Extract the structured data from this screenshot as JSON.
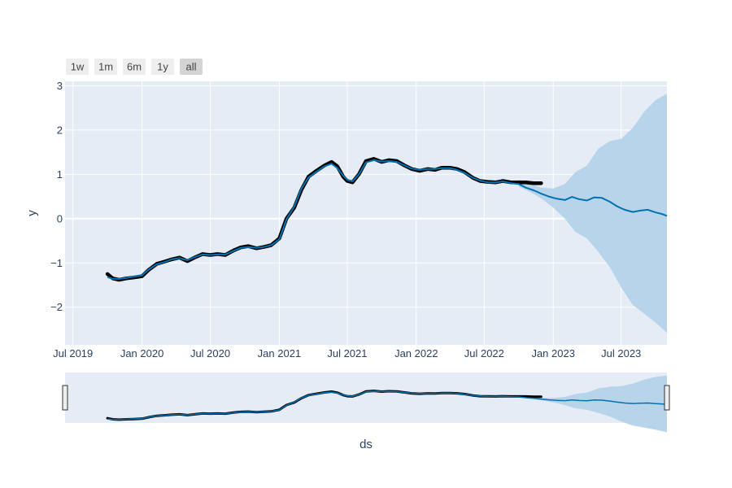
{
  "colors": {
    "plot_bg": "#e5ecf6",
    "grid": "#ffffff",
    "forecast_line": "#0072b2",
    "uncertainty_band": "#b8d4ea",
    "actual_points": "#000000",
    "text": "#2a3f5f"
  },
  "range_selector": {
    "buttons": [
      {
        "label": "1w",
        "active": false
      },
      {
        "label": "1m",
        "active": false
      },
      {
        "label": "6m",
        "active": false
      },
      {
        "label": "1y",
        "active": false
      },
      {
        "label": "all",
        "active": true
      }
    ]
  },
  "chart_data": {
    "type": "line",
    "xlabel": "ds",
    "ylabel": "y",
    "x_is_date": true,
    "xlim": [
      "2019-06-10",
      "2023-10-31"
    ],
    "ylim": [
      -2.85,
      3.1
    ],
    "grid": true,
    "x_ticks": [
      "2019-07-01",
      "2020-01-01",
      "2020-07-01",
      "2021-01-01",
      "2021-07-01",
      "2022-01-01",
      "2022-07-01",
      "2023-01-01",
      "2023-07-01"
    ],
    "x_tick_labels": [
      "Jul 2019",
      "Jan 2020",
      "Jul 2020",
      "Jan 2021",
      "Jul 2021",
      "Jan 2022",
      "Jul 2022",
      "Jan 2023",
      "Jul 2023"
    ],
    "y_ticks": [
      -2,
      -1,
      0,
      1,
      2,
      3
    ],
    "y_tick_labels": [
      "−2",
      "−1",
      "0",
      "1",
      "2",
      "3"
    ],
    "has_range_slider": true,
    "series": [
      {
        "kind": "actual",
        "x": [
          "2019-10-01",
          "2019-10-15",
          "2019-11-01",
          "2019-11-20",
          "2019-12-10",
          "2020-01-01",
          "2020-01-20",
          "2020-02-10",
          "2020-03-01",
          "2020-03-20",
          "2020-04-10",
          "2020-05-01",
          "2020-05-20",
          "2020-06-10",
          "2020-07-01",
          "2020-07-20",
          "2020-08-10",
          "2020-09-01",
          "2020-09-20",
          "2020-10-10",
          "2020-11-01",
          "2020-11-20",
          "2020-12-10",
          "2021-01-01",
          "2021-01-20",
          "2021-02-10",
          "2021-03-01",
          "2021-03-20",
          "2021-04-10",
          "2021-05-01",
          "2021-05-20",
          "2021-06-05",
          "2021-06-20",
          "2021-07-01",
          "2021-07-15",
          "2021-08-01",
          "2021-08-20",
          "2021-09-10",
          "2021-10-01",
          "2021-10-20",
          "2021-11-10",
          "2021-12-01",
          "2021-12-20",
          "2022-01-10",
          "2022-02-01",
          "2022-02-20",
          "2022-03-10",
          "2022-04-01",
          "2022-04-20",
          "2022-05-10",
          "2022-06-01",
          "2022-06-20",
          "2022-07-10",
          "2022-08-01",
          "2022-08-20",
          "2022-09-10",
          "2022-10-01",
          "2022-10-20",
          "2022-11-10",
          "2022-11-30"
        ],
        "y": [
          -1.25,
          -1.35,
          -1.38,
          -1.35,
          -1.33,
          -1.3,
          -1.15,
          -1.02,
          -0.97,
          -0.92,
          -0.88,
          -0.96,
          -0.88,
          -0.8,
          -0.82,
          -0.8,
          -0.82,
          -0.72,
          -0.65,
          -0.62,
          -0.67,
          -0.64,
          -0.6,
          -0.45,
          0.0,
          0.25,
          0.65,
          0.95,
          1.08,
          1.2,
          1.28,
          1.18,
          0.95,
          0.85,
          0.82,
          1.0,
          1.3,
          1.35,
          1.28,
          1.32,
          1.3,
          1.2,
          1.12,
          1.08,
          1.12,
          1.1,
          1.15,
          1.15,
          1.12,
          1.05,
          0.92,
          0.85,
          0.83,
          0.82,
          0.85,
          0.82,
          0.82,
          0.82,
          0.8,
          0.8
        ]
      },
      {
        "kind": "forecast",
        "x": [
          "2019-10-01",
          "2019-10-15",
          "2019-11-01",
          "2019-11-20",
          "2019-12-10",
          "2020-01-01",
          "2020-01-20",
          "2020-02-10",
          "2020-03-01",
          "2020-03-20",
          "2020-04-10",
          "2020-05-01",
          "2020-05-20",
          "2020-06-10",
          "2020-07-01",
          "2020-07-20",
          "2020-08-10",
          "2020-09-01",
          "2020-09-20",
          "2020-10-10",
          "2020-11-01",
          "2020-11-20",
          "2020-12-10",
          "2021-01-01",
          "2021-01-20",
          "2021-02-10",
          "2021-03-01",
          "2021-03-20",
          "2021-04-10",
          "2021-05-01",
          "2021-05-20",
          "2021-06-05",
          "2021-06-20",
          "2021-07-01",
          "2021-07-15",
          "2021-08-01",
          "2021-08-20",
          "2021-09-10",
          "2021-10-01",
          "2021-10-20",
          "2021-11-10",
          "2021-12-01",
          "2021-12-20",
          "2022-01-10",
          "2022-02-01",
          "2022-02-20",
          "2022-03-10",
          "2022-04-01",
          "2022-04-20",
          "2022-05-10",
          "2022-06-01",
          "2022-06-20",
          "2022-07-10",
          "2022-08-01",
          "2022-08-20",
          "2022-09-10",
          "2022-10-01",
          "2022-10-20",
          "2022-11-10",
          "2022-12-01",
          "2022-12-20",
          "2023-01-10",
          "2023-02-01",
          "2023-02-20",
          "2023-03-10",
          "2023-04-01",
          "2023-04-20",
          "2023-05-10",
          "2023-06-01",
          "2023-06-20",
          "2023-07-10",
          "2023-08-01",
          "2023-08-20",
          "2023-09-10",
          "2023-10-01",
          "2023-10-20",
          "2023-10-31"
        ],
        "y": [
          -1.32,
          -1.36,
          -1.36,
          -1.34,
          -1.31,
          -1.28,
          -1.14,
          -1.03,
          -0.98,
          -0.92,
          -0.89,
          -0.94,
          -0.87,
          -0.81,
          -0.82,
          -0.81,
          -0.81,
          -0.73,
          -0.66,
          -0.64,
          -0.66,
          -0.64,
          -0.6,
          -0.47,
          -0.02,
          0.28,
          0.68,
          0.93,
          1.06,
          1.18,
          1.24,
          1.14,
          0.97,
          0.88,
          0.84,
          1.0,
          1.27,
          1.32,
          1.29,
          1.3,
          1.28,
          1.2,
          1.13,
          1.1,
          1.12,
          1.12,
          1.14,
          1.14,
          1.1,
          1.03,
          0.92,
          0.86,
          0.82,
          0.82,
          0.84,
          0.8,
          0.78,
          0.7,
          0.64,
          0.56,
          0.5,
          0.45,
          0.42,
          0.49,
          0.44,
          0.41,
          0.48,
          0.47,
          0.38,
          0.28,
          0.2,
          0.15,
          0.18,
          0.2,
          0.14,
          0.1,
          0.06
        ]
      },
      {
        "kind": "uncertainty",
        "x": [
          "2022-10-01",
          "2022-11-01",
          "2022-12-01",
          "2023-01-01",
          "2023-02-01",
          "2023-03-01",
          "2023-04-01",
          "2023-05-01",
          "2023-06-01",
          "2023-07-01",
          "2023-08-01",
          "2023-09-01",
          "2023-10-01",
          "2023-10-31"
        ],
        "upper": [
          0.88,
          0.78,
          0.7,
          0.68,
          0.78,
          1.05,
          1.2,
          1.58,
          1.75,
          1.8,
          2.05,
          2.42,
          2.68,
          2.82
        ],
        "lower": [
          0.72,
          0.6,
          0.45,
          0.25,
          0.0,
          -0.3,
          -0.45,
          -0.75,
          -1.1,
          -1.55,
          -1.95,
          -2.15,
          -2.35,
          -2.58
        ]
      }
    ]
  }
}
